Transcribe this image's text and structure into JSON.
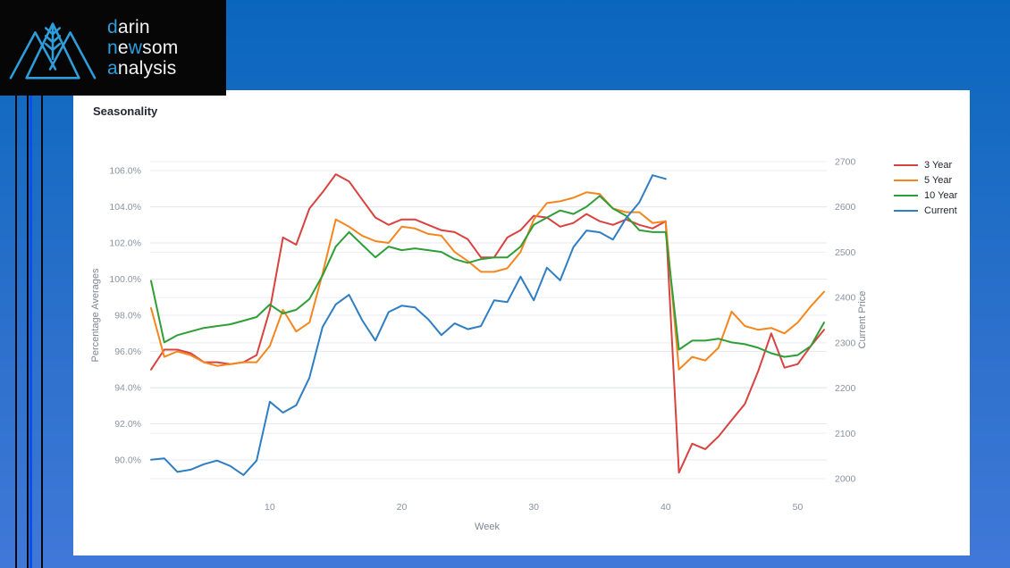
{
  "brand": {
    "logo_icon": "wheat-mountains-icon",
    "accent_color": "#2d9edb",
    "lines": [
      {
        "segments": [
          {
            "text": "d",
            "accent": true
          },
          {
            "text": "arin",
            "accent": false
          }
        ]
      },
      {
        "segments": [
          {
            "text": "n",
            "accent": true
          },
          {
            "text": "e",
            "accent": false
          },
          {
            "text": "w",
            "accent": true
          },
          {
            "text": "som",
            "accent": false
          }
        ]
      },
      {
        "segments": [
          {
            "text": "a",
            "accent": true
          },
          {
            "text": "nalysis",
            "accent": false
          }
        ]
      }
    ]
  },
  "panel": {
    "title": "Seasonality"
  },
  "chart_data": {
    "type": "line",
    "title": "Seasonality",
    "xlabel": "Week",
    "x_axis": {
      "min": 1,
      "max": 52,
      "ticks": [
        10,
        20,
        30,
        40,
        50
      ]
    },
    "left_axis": {
      "label": "Percentage Averages",
      "tick_values": [
        90,
        92,
        94,
        96,
        98,
        100,
        102,
        104,
        106
      ],
      "tick_labels": [
        "90.0%",
        "92.0%",
        "94.0%",
        "96.0%",
        "98.0%",
        "100.0%",
        "102.0%",
        "104.0%",
        "106.0%"
      ],
      "range": [
        90,
        106
      ]
    },
    "right_axis": {
      "label": "Current Price",
      "tick_values": [
        2000,
        2100,
        2200,
        2300,
        2400,
        2500,
        2600,
        2700
      ],
      "range": [
        2000,
        2700
      ]
    },
    "grid": true,
    "legend_position": "top-right",
    "series": [
      {
        "name": "3 Year",
        "color": "#d8423f",
        "axis": "left",
        "x_start": 1,
        "values": [
          95.0,
          96.1,
          96.1,
          95.9,
          95.4,
          95.4,
          95.3,
          95.4,
          95.8,
          98.3,
          102.3,
          101.9,
          103.9,
          104.8,
          105.8,
          105.4,
          104.4,
          103.4,
          103.0,
          103.3,
          103.3,
          103.0,
          102.7,
          102.6,
          102.2,
          101.2,
          101.2,
          102.3,
          102.7,
          103.5,
          103.4,
          102.9,
          103.1,
          103.6,
          103.2,
          103.0,
          103.3,
          103.0,
          102.8,
          103.2,
          89.3,
          90.9,
          90.6,
          91.3,
          92.2,
          93.1,
          94.9,
          97.0,
          95.1,
          95.3,
          96.3,
          97.2
        ]
      },
      {
        "name": "5 Year",
        "color": "#f5861d",
        "axis": "left",
        "x_start": 1,
        "values": [
          98.4,
          95.7,
          96.0,
          95.8,
          95.4,
          95.2,
          95.3,
          95.4,
          95.4,
          96.3,
          98.3,
          97.1,
          97.6,
          100.3,
          103.3,
          102.9,
          102.4,
          102.1,
          102.0,
          102.9,
          102.8,
          102.5,
          102.4,
          101.5,
          101.0,
          100.4,
          100.4,
          100.6,
          101.5,
          103.3,
          104.2,
          104.3,
          104.5,
          104.8,
          104.7,
          103.9,
          103.7,
          103.7,
          103.1,
          103.2,
          95.0,
          95.7,
          95.5,
          96.2,
          98.2,
          97.4,
          97.2,
          97.3,
          97.0,
          97.6,
          98.5,
          99.3
        ]
      },
      {
        "name": "10 Year",
        "color": "#2f9e37",
        "axis": "left",
        "x_start": 1,
        "values": [
          99.9,
          96.5,
          96.9,
          97.1,
          97.3,
          97.4,
          97.5,
          97.7,
          97.9,
          98.6,
          98.1,
          98.3,
          98.9,
          100.2,
          101.8,
          102.6,
          101.9,
          101.2,
          101.8,
          101.6,
          101.7,
          101.6,
          101.5,
          101.1,
          100.9,
          101.1,
          101.2,
          101.2,
          101.8,
          103.0,
          103.4,
          103.8,
          103.6,
          104.0,
          104.6,
          103.9,
          103.5,
          102.7,
          102.6,
          102.6,
          96.1,
          96.6,
          96.6,
          96.7,
          96.5,
          96.4,
          96.2,
          95.9,
          95.7,
          95.8,
          96.3,
          97.6
        ]
      },
      {
        "name": "Current",
        "color": "#2e7ec4",
        "axis": "right",
        "x_start": 1,
        "values": [
          2042,
          2045,
          2015,
          2020,
          2032,
          2040,
          2028,
          2008,
          2040,
          2170,
          2146,
          2162,
          2223,
          2335,
          2385,
          2406,
          2350,
          2305,
          2368,
          2382,
          2378,
          2352,
          2317,
          2343,
          2330,
          2337,
          2394,
          2390,
          2446,
          2394,
          2466,
          2438,
          2511,
          2548,
          2544,
          2528,
          2575,
          2610,
          2670,
          2662
        ]
      }
    ]
  }
}
